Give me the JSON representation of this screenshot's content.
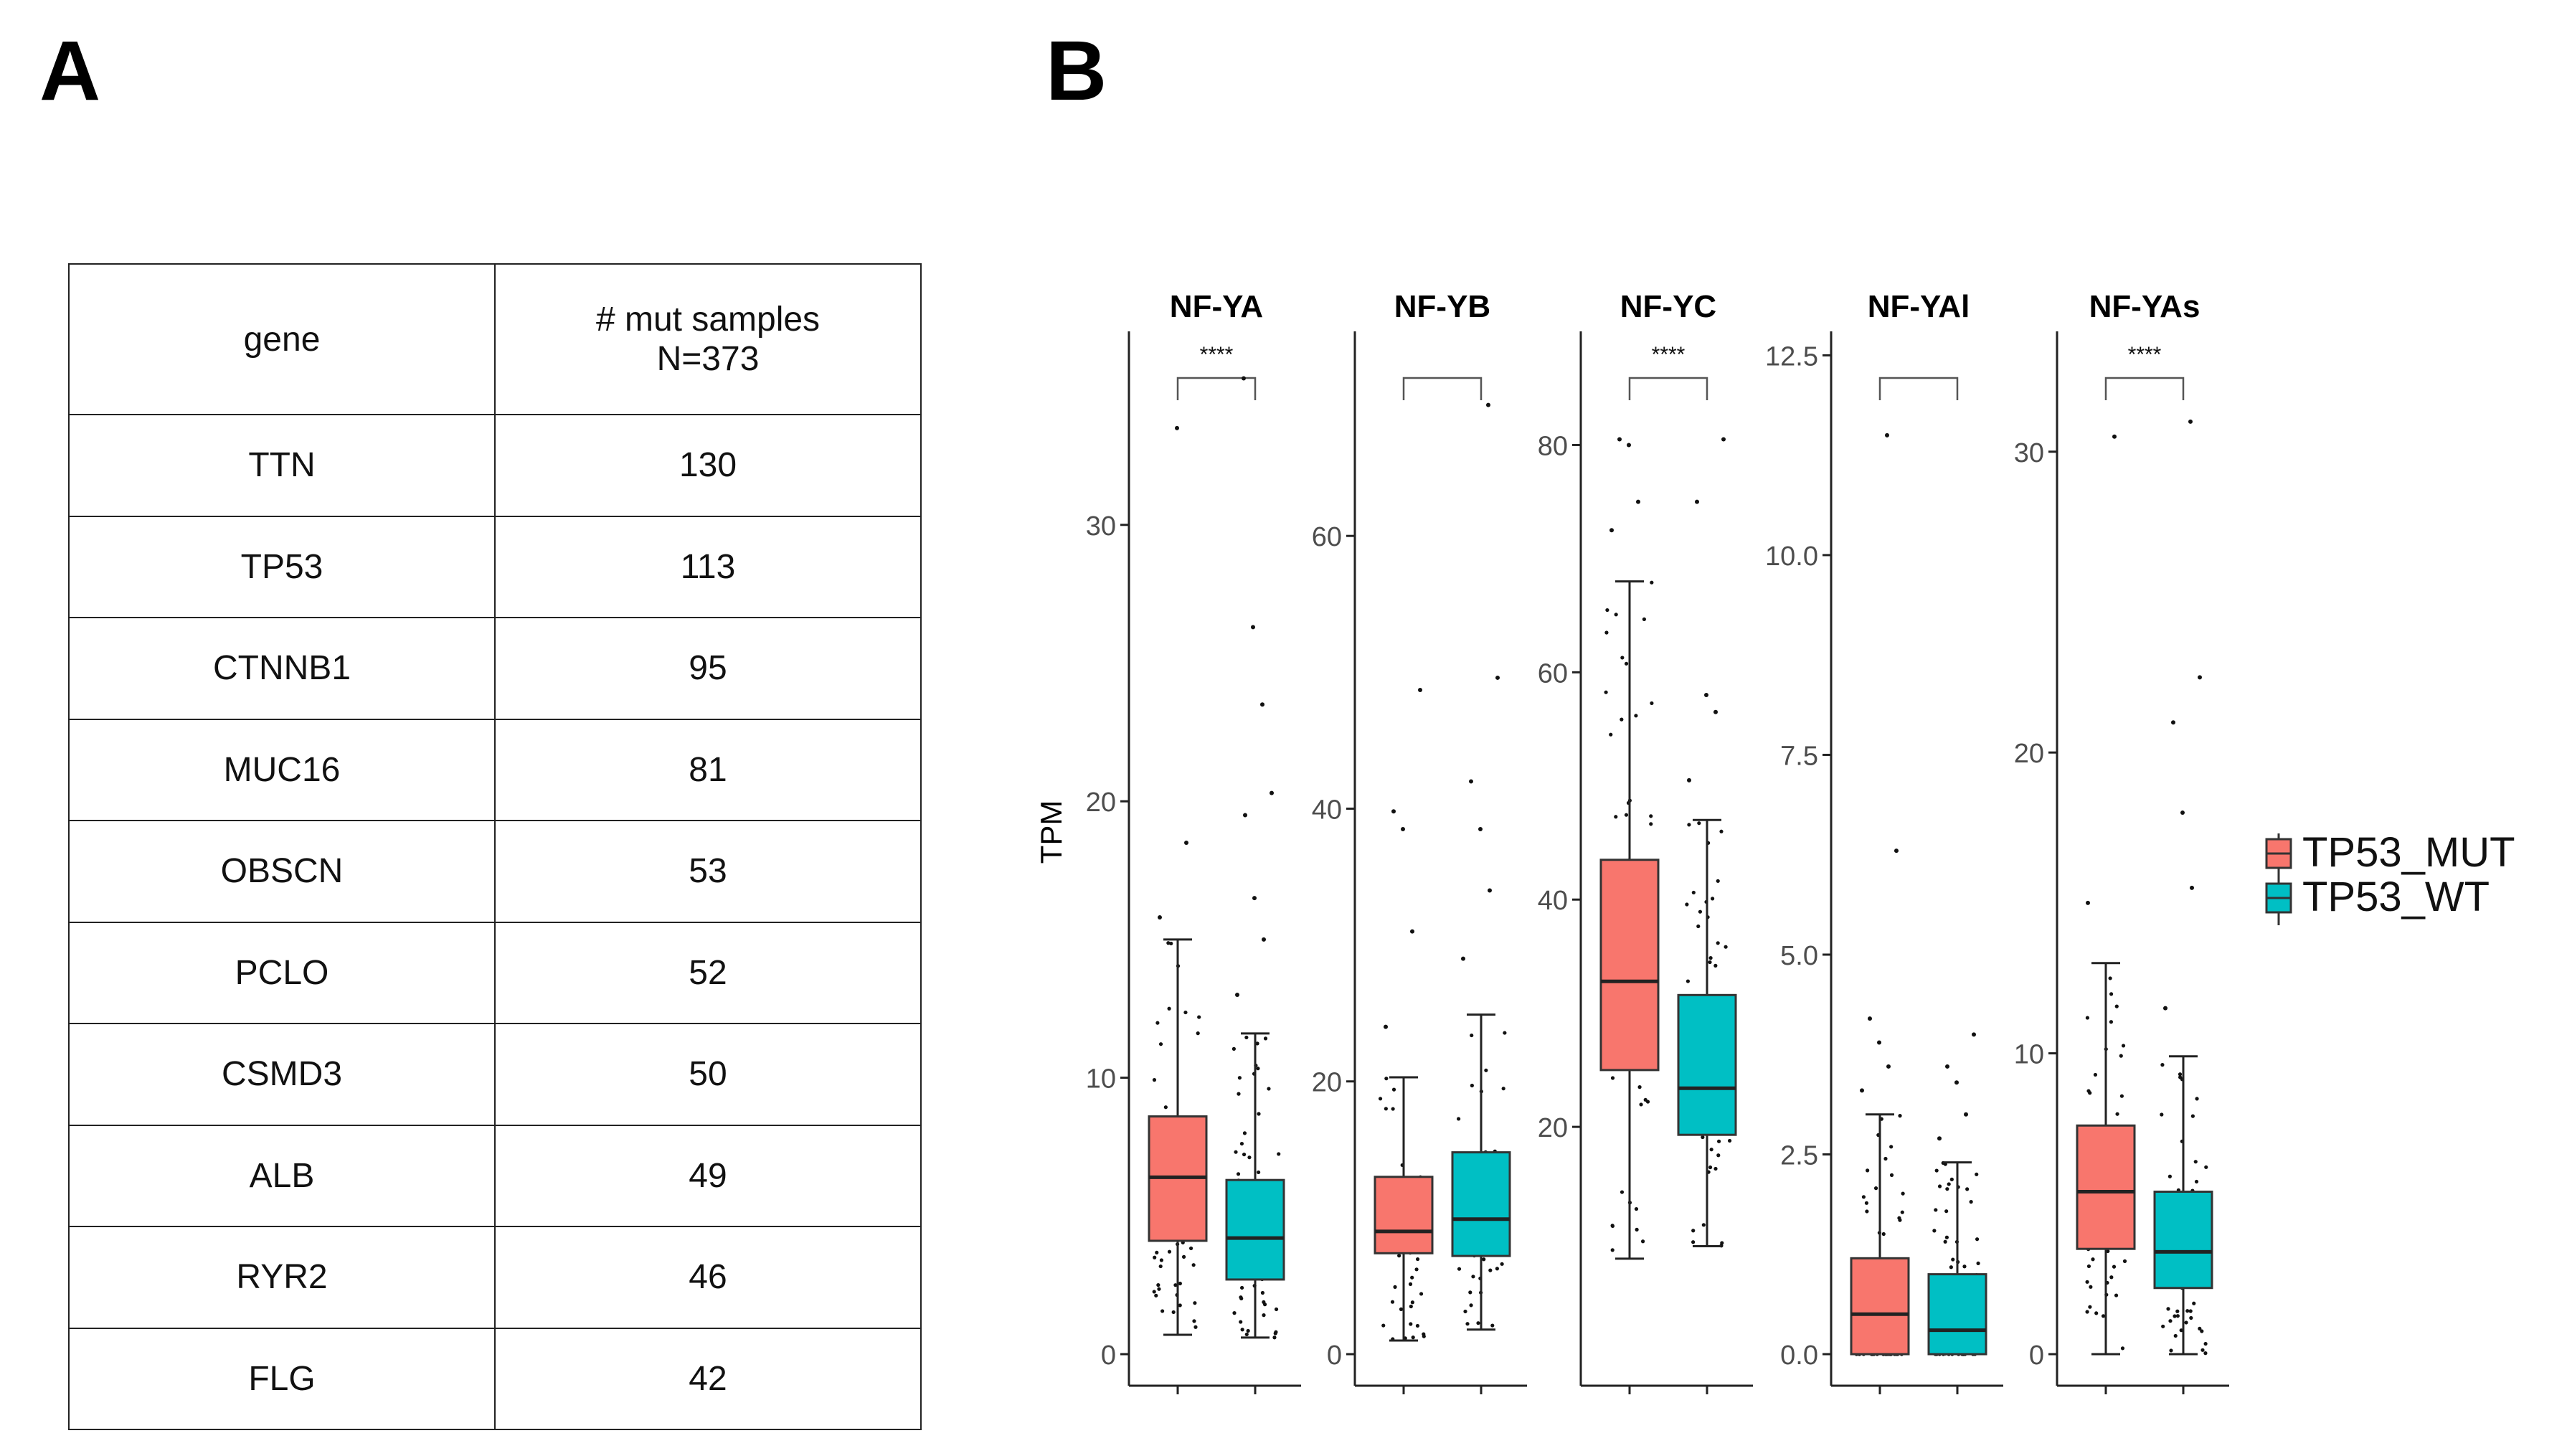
{
  "panel_labels": {
    "a": "A",
    "b": "B"
  },
  "table": {
    "headers": {
      "gene": "gene",
      "count_line1": "# mut samples",
      "count_line2": "N=373"
    },
    "rows": [
      {
        "gene": "TTN",
        "count": "130"
      },
      {
        "gene": "TP53",
        "count": "113"
      },
      {
        "gene": "CTNNB1",
        "count": "95"
      },
      {
        "gene": "MUC16",
        "count": "81"
      },
      {
        "gene": "OBSCN",
        "count": "53"
      },
      {
        "gene": "PCLO",
        "count": "52"
      },
      {
        "gene": "CSMD3",
        "count": "50"
      },
      {
        "gene": "ALB",
        "count": "49"
      },
      {
        "gene": "RYR2",
        "count": "46"
      },
      {
        "gene": "FLG",
        "count": "42"
      }
    ]
  },
  "chart_data": {
    "type": "boxplot",
    "ylabel": "TPM",
    "legend": {
      "position": "right",
      "entries": [
        {
          "name": "TP53_MUT",
          "color": "#F8766D"
        },
        {
          "name": "TP53_WT",
          "color": "#00BFC4"
        }
      ]
    },
    "groups": [
      "TP53_MUT",
      "TP53_WT"
    ],
    "colors": {
      "mut": "#F8766D",
      "wt": "#00BFC4"
    },
    "panels": [
      {
        "title": "NF-YA",
        "ylim": [
          0,
          37
        ],
        "ticks": [
          0,
          10,
          20,
          30
        ],
        "tick_labels": [
          "0",
          "10",
          "20",
          "30"
        ],
        "significance": "****",
        "boxes": [
          {
            "group": "TP53_MUT",
            "min": 0.7,
            "q1": 4.1,
            "median": 6.4,
            "q3": 8.6,
            "max": 15.0,
            "outliers": [
              15.8,
              18.5,
              33.5
            ]
          },
          {
            "group": "TP53_WT",
            "min": 0.6,
            "q1": 2.7,
            "median": 4.2,
            "q3": 6.3,
            "max": 11.6,
            "outliers": [
              13.0,
              15.0,
              16.5,
              19.5,
              20.3,
              23.5,
              26.3,
              35.3
            ]
          }
        ]
      },
      {
        "title": "NF-YB",
        "ylim": [
          0,
          75
        ],
        "ticks": [
          0,
          20,
          40,
          60
        ],
        "tick_labels": [
          "0",
          "20",
          "40",
          "60"
        ],
        "significance": "",
        "boxes": [
          {
            "group": "TP53_MUT",
            "min": 1.0,
            "q1": 7.4,
            "median": 9.0,
            "q3": 13.0,
            "max": 20.3,
            "outliers": [
              24.0,
              31.0,
              38.5,
              39.8,
              48.7
            ]
          },
          {
            "group": "TP53_WT",
            "min": 1.8,
            "q1": 7.2,
            "median": 9.9,
            "q3": 14.8,
            "max": 24.9,
            "outliers": [
              29.0,
              34.0,
              38.5,
              42.0,
              49.6,
              69.6
            ]
          }
        ]
      },
      {
        "title": "NF-YC",
        "ylim": [
          0,
          90
        ],
        "ticks": [
          20,
          40,
          60,
          80
        ],
        "tick_labels": [
          "20",
          "40",
          "60",
          "80"
        ],
        "significance": "****",
        "boxes": [
          {
            "group": "TP53_MUT",
            "min": 8.4,
            "q1": 25.0,
            "median": 32.8,
            "q3": 43.5,
            "max": 68.0,
            "outliers": [
              72.5,
              75.0,
              80.0,
              80.5
            ]
          },
          {
            "group": "TP53_WT",
            "min": 9.5,
            "q1": 19.3,
            "median": 23.4,
            "q3": 31.6,
            "max": 47.0,
            "outliers": [
              50.5,
              56.5,
              58.0,
              75.0,
              80.5
            ]
          }
        ]
      },
      {
        "title": "NF-YAl",
        "ylim": [
          0,
          12.8
        ],
        "ticks": [
          0,
          2.5,
          5,
          7.5,
          10,
          12.5
        ],
        "tick_labels": [
          "0.0",
          "2.5",
          "5.0",
          "7.5",
          "10.0",
          "12.5"
        ],
        "significance": "",
        "boxes": [
          {
            "group": "TP53_MUT",
            "min": 0.0,
            "q1": 0.0,
            "median": 0.5,
            "q3": 1.2,
            "max": 3.0,
            "outliers": [
              3.3,
              3.6,
              3.9,
              4.2,
              6.3,
              11.5
            ]
          },
          {
            "group": "TP53_WT",
            "min": 0.0,
            "q1": 0.0,
            "median": 0.3,
            "q3": 1.0,
            "max": 2.4,
            "outliers": [
              2.7,
              3.0,
              3.4,
              3.6,
              4.0
            ]
          }
        ]
      },
      {
        "title": "NF-YAs",
        "ylim": [
          0,
          34
        ],
        "ticks": [
          0,
          10,
          20,
          30
        ],
        "tick_labels": [
          "0",
          "10",
          "20",
          "30"
        ],
        "significance": "****",
        "boxes": [
          {
            "group": "TP53_MUT",
            "min": 0.0,
            "q1": 3.5,
            "median": 5.4,
            "q3": 7.6,
            "max": 13.0,
            "outliers": [
              15.0,
              30.5
            ]
          },
          {
            "group": "TP53_WT",
            "min": 0.0,
            "q1": 2.2,
            "median": 3.4,
            "q3": 5.4,
            "max": 9.9,
            "outliers": [
              11.5,
              15.5,
              18.0,
              21.0,
              22.5,
              31.0
            ]
          }
        ]
      }
    ]
  }
}
